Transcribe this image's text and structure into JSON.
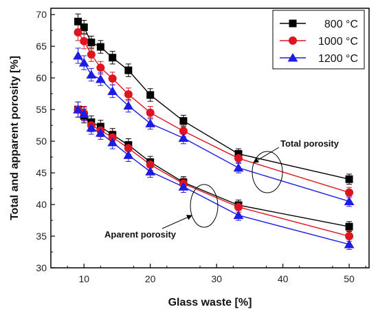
{
  "chart_data": {
    "type": "line",
    "title": "",
    "xlabel": "Glass waste [%]",
    "ylabel": "Total and apparent porosity [%]",
    "xlim": [
      5,
      53
    ],
    "ylim": [
      30,
      71
    ],
    "xticks": [
      10,
      20,
      30,
      40,
      50
    ],
    "yticks": [
      30,
      35,
      40,
      45,
      50,
      55,
      60,
      65,
      70
    ],
    "grid": false,
    "legend_position": "top-right",
    "x": [
      9.1,
      10,
      11.1,
      12.5,
      14.3,
      16.7,
      20,
      25,
      33.3,
      50
    ],
    "groups": [
      {
        "name": "Total porosity",
        "series": [
          {
            "name": "800 °C",
            "color": "#000000",
            "marker": "square",
            "values": [
              68.9,
              68.0,
              65.6,
              64.9,
              63.2,
              61.2,
              57.3,
              53.2,
              48.0,
              44.0
            ],
            "error": [
              1.2,
              1.1,
              1.0,
              1.0,
              1.0,
              1.0,
              1.0,
              0.9,
              0.8,
              0.8
            ]
          },
          {
            "name": "1000 °C",
            "color": "#e0141e",
            "marker": "circle",
            "values": [
              67.2,
              65.8,
              63.7,
              61.6,
              59.9,
              57.4,
              54.5,
              51.6,
              47.3,
              41.9
            ],
            "error": [
              1.3,
              1.2,
              1.1,
              1.0,
              1.0,
              1.0,
              1.0,
              0.9,
              0.8,
              0.8
            ]
          },
          {
            "name": "1200 °C",
            "color": "#1c1ce6",
            "marker": "triangle",
            "values": [
              63.5,
              62.4,
              60.5,
              59.8,
              57.9,
              55.6,
              52.8,
              50.5,
              45.8,
              40.5
            ],
            "error": [
              1.2,
              1.1,
              1.0,
              1.0,
              1.0,
              1.0,
              0.9,
              0.9,
              0.8,
              0.8
            ]
          }
        ]
      },
      {
        "name": "Aparent porosity",
        "series": [
          {
            "name": "800 °C",
            "color": "#000000",
            "marker": "square",
            "values": [
              55.0,
              54.0,
              53.0,
              52.3,
              51.0,
              49.4,
              46.7,
              43.5,
              39.9,
              36.5
            ],
            "error": [
              1.2,
              1.1,
              1.0,
              1.0,
              1.0,
              1.0,
              0.9,
              0.9,
              0.8,
              0.8
            ]
          },
          {
            "name": "1000 °C",
            "color": "#e0141e",
            "marker": "circle",
            "values": [
              55.0,
              54.4,
              52.5,
              51.7,
              50.6,
              48.9,
              46.3,
              43.3,
              39.6,
              35.0
            ],
            "error": [
              1.2,
              1.1,
              1.0,
              1.0,
              1.0,
              1.0,
              0.9,
              0.9,
              0.8,
              0.8
            ]
          },
          {
            "name": "1200 °C",
            "color": "#1c1ce6",
            "marker": "triangle",
            "values": [
              55.0,
              54.3,
              52.1,
              51.3,
              49.8,
              47.8,
              45.2,
              42.8,
              38.3,
              33.7
            ],
            "error": [
              1.2,
              1.1,
              1.0,
              1.0,
              1.0,
              1.0,
              0.9,
              0.9,
              0.8,
              0.8
            ]
          }
        ]
      }
    ],
    "legend": [
      "800 °C",
      "1000 °C",
      "1200 °C"
    ],
    "annotations": [
      "Total porosity",
      "Aparent porosity"
    ]
  }
}
